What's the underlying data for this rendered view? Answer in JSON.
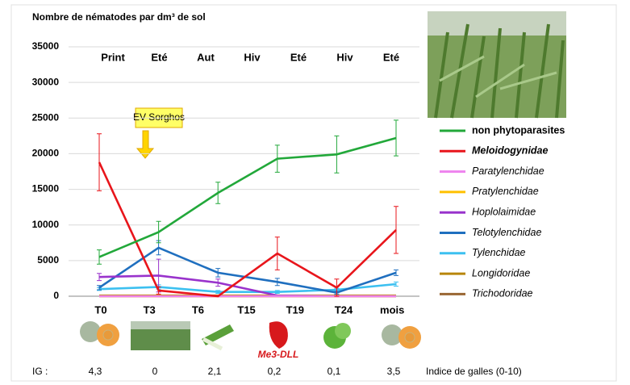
{
  "chart_data": {
    "type": "line",
    "title": "Nombre de nématodes par dm³ de sol",
    "season_labels": [
      "Print",
      "Eté",
      "Aut",
      "Hiv",
      "Eté",
      "Hiv",
      "Eté"
    ],
    "time_labels": [
      "T0",
      "T3",
      "T6",
      "T15",
      "T19",
      "T24",
      "mois"
    ],
    "annotation": "EV Sorghos",
    "ylim": [
      0,
      35000
    ],
    "yticks": [
      0,
      5000,
      10000,
      15000,
      20000,
      25000,
      30000,
      35000
    ],
    "grid": true,
    "series": [
      {
        "name": "non phytoparasites",
        "color": "#22a83a",
        "values": [
          5500,
          9000,
          14500,
          19300,
          19900,
          22200
        ],
        "errors": [
          1000,
          1500,
          1500,
          1900,
          2600,
          2500
        ]
      },
      {
        "name": "Meloidogynidae",
        "color": "#e8151b",
        "values": [
          18800,
          800,
          0,
          6000,
          1200,
          9300
        ],
        "errors": [
          4000,
          500,
          0,
          2300,
          1200,
          3300
        ]
      },
      {
        "name": "Paratylenchidae",
        "color": "#ee82ee",
        "values": [
          0,
          0,
          0,
          0,
          0,
          0
        ],
        "errors": [
          0,
          0,
          0,
          0,
          0,
          0
        ]
      },
      {
        "name": "Pratylenchidae",
        "color": "#ffc000",
        "values": [
          0,
          0,
          0,
          0,
          0,
          0
        ],
        "errors": [
          0,
          0,
          0,
          0,
          0,
          0
        ]
      },
      {
        "name": "Hoplolaimidae",
        "color": "#9933cc",
        "values": [
          2700,
          2900,
          1900,
          100,
          0,
          0
        ],
        "errors": [
          500,
          2300,
          500,
          0,
          0,
          0
        ]
      },
      {
        "name": "Telotylenchidae",
        "color": "#1f6fbf",
        "values": [
          1200,
          6800,
          3300,
          2000,
          500,
          3300
        ],
        "errors": [
          300,
          1000,
          600,
          500,
          200,
          400
        ]
      },
      {
        "name": "Tylenchidae",
        "color": "#3cc0f0",
        "values": [
          1000,
          1300,
          600,
          600,
          900,
          1700
        ],
        "errors": [
          200,
          300,
          200,
          200,
          200,
          300
        ]
      },
      {
        "name": "Longidoridae",
        "color": "#b8860b",
        "values": [
          100,
          100,
          100,
          100,
          100,
          100
        ],
        "errors": [
          0,
          0,
          0,
          0,
          0,
          0
        ]
      },
      {
        "name": "Trichodoridae",
        "color": "#996633",
        "values": [
          0,
          0,
          0,
          0,
          0,
          0
        ],
        "errors": [
          0,
          0,
          0,
          0,
          0,
          0
        ]
      }
    ]
  },
  "crop_label": "Me3-DLL",
  "gall_index": {
    "label": "IG :",
    "values": [
      "4,3",
      "0",
      "2,1",
      "0,2",
      "0,1",
      "3,5"
    ],
    "caption": "Indice de galles (0-10)"
  }
}
